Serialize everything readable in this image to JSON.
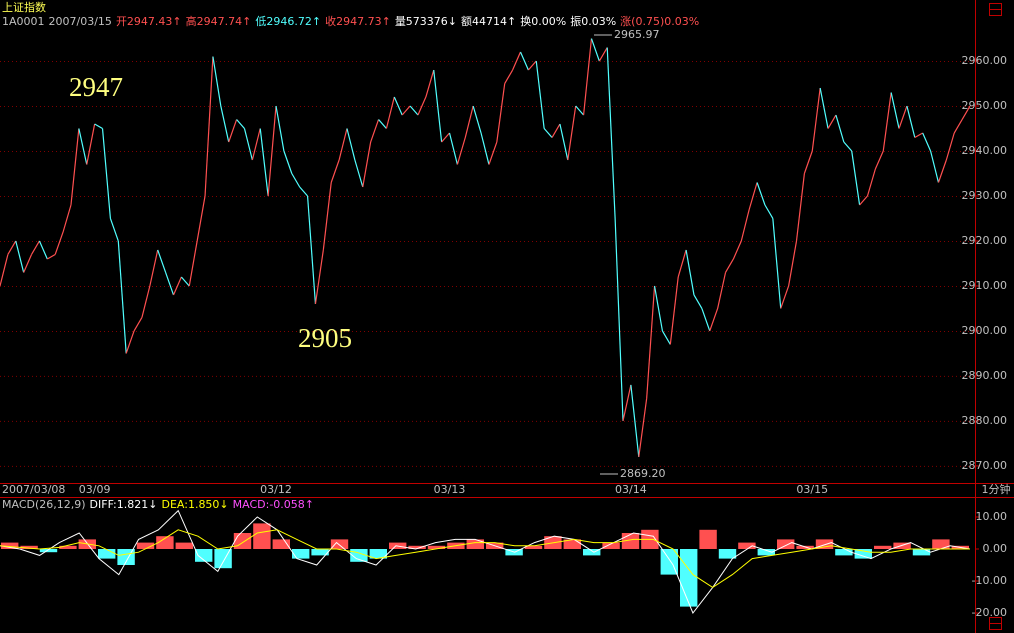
{
  "chart_data": [
    {
      "type": "line",
      "title": "上证指数",
      "title_color": "#ffff54",
      "info": [
        {
          "text": "1A0001",
          "color": "#c0c0c0"
        },
        {
          "text": "2007/03/15",
          "color": "#c0c0c0"
        },
        {
          "text": "开2947.43↑",
          "color": "#ff5050"
        },
        {
          "text": "高2947.74↑",
          "color": "#ff5050"
        },
        {
          "text": "低2946.72↑",
          "color": "#50ffff"
        },
        {
          "text": "收2947.73↑",
          "color": "#ff5050"
        },
        {
          "text": "量573376↓",
          "color": "#ffffff"
        },
        {
          "text": "额44714↑",
          "color": "#ffffff"
        },
        {
          "text": "换0.00%",
          "color": "#ffffff"
        },
        {
          "text": "振0.03%",
          "color": "#ffffff"
        },
        {
          "text": "涨(0.75)0.03%",
          "color": "#ff5050"
        }
      ],
      "categories": [
        "2007/03/08",
        null,
        null,
        null,
        null,
        null,
        null,
        null,
        null,
        null,
        null,
        null,
        "03/09",
        null,
        null,
        null,
        null,
        null,
        null,
        null,
        null,
        null,
        null,
        null,
        null,
        null,
        null,
        null,
        null,
        null,
        null,
        null,
        null,
        null,
        null,
        "03/12",
        null,
        null,
        null,
        null,
        null,
        null,
        null,
        null,
        null,
        null,
        null,
        null,
        null,
        null,
        null,
        null,
        null,
        null,
        null,
        null,
        null,
        "03/13",
        null,
        null,
        null,
        null,
        null,
        null,
        null,
        null,
        null,
        null,
        null,
        null,
        null,
        null,
        null,
        null,
        null,
        null,
        null,
        null,
        null,
        null,
        "03/14",
        null,
        null,
        null,
        null,
        null,
        null,
        null,
        null,
        null,
        null,
        null,
        null,
        null,
        null,
        null,
        null,
        null,
        null,
        null,
        null,
        null,
        null,
        "03/15",
        null,
        null,
        null,
        null,
        null,
        null,
        null,
        null,
        null,
        null,
        null,
        null,
        null,
        null,
        null,
        null,
        null,
        null,
        null,
        null
      ],
      "values": [
        2910,
        2917,
        2920,
        2913,
        2917,
        2920,
        2916,
        2917,
        2922,
        2928,
        2945,
        2937,
        2946,
        2945,
        2925,
        2920,
        2895,
        2900,
        2903,
        2910,
        2918,
        2913,
        2908,
        2912,
        2910,
        2920,
        2930,
        2961,
        2950,
        2942,
        2947,
        2945,
        2938,
        2945,
        2930,
        2950,
        2940,
        2935,
        2932,
        2930,
        2906,
        2918,
        2933,
        2938,
        2945,
        2938,
        2932,
        2942,
        2947,
        2945,
        2952,
        2948,
        2950,
        2948,
        2952,
        2958,
        2942,
        2944,
        2937,
        2943,
        2950,
        2944,
        2937,
        2942,
        2955,
        2958,
        2962,
        2958,
        2960,
        2945,
        2943,
        2946,
        2938,
        2950,
        2948,
        2965,
        2960,
        2963,
        2925,
        2880,
        2888,
        2872,
        2885,
        2910,
        2900,
        2897,
        2912,
        2918,
        2908,
        2905,
        2900,
        2905,
        2913,
        2916,
        2920,
        2927,
        2933,
        2928,
        2925,
        2905,
        2910,
        2920,
        2935,
        2940,
        2954,
        2945,
        2948,
        2942,
        2940,
        2928,
        2930,
        2936,
        2940,
        2953,
        2945,
        2950,
        2943,
        2944,
        2940,
        2933,
        2938,
        2944,
        2947,
        2950
      ],
      "up_color": "#ff5050",
      "down_color": "#50ffff",
      "ylim": [
        2866.2,
        2966.9
      ],
      "yticks": [
        {
          "value": 2870,
          "label": "2870.00"
        },
        {
          "value": 2880,
          "label": "2880.00"
        },
        {
          "value": 2890,
          "label": "2890.00"
        },
        {
          "value": 2900,
          "label": "2900.00"
        },
        {
          "value": 2910,
          "label": "2910.00"
        },
        {
          "value": 2920,
          "label": "2920.00"
        },
        {
          "value": 2930,
          "label": "2930.00"
        },
        {
          "value": 2940,
          "label": "2940.00"
        },
        {
          "value": 2950,
          "label": "2950.00"
        },
        {
          "value": 2960,
          "label": "2960.00"
        }
      ],
      "grid": true,
      "annotations": [
        {
          "text": "2947"
        },
        {
          "text": "2905"
        },
        {
          "text": "2965.97"
        },
        {
          "text": "2869.20"
        }
      ],
      "x_unit": "1分钟"
    },
    {
      "type": "macd",
      "title": "MACD(26,12,9)",
      "legend": [
        {
          "text": "DIFF:1.821↓",
          "color": "#ffffff"
        },
        {
          "text": "DEA:1.850↓",
          "color": "#ffff00"
        },
        {
          "text": "MACD:-0.058↑",
          "color": "#ff50ff"
        }
      ],
      "series": [
        {
          "color": "#ff5050",
          "down_color": "#50ffff",
          "values": [
            2,
            1,
            -1,
            1,
            3,
            -3,
            -5,
            2,
            4,
            2,
            -4,
            -6,
            5,
            8,
            3,
            -3,
            -2,
            3,
            -4,
            -3,
            2,
            1,
            1,
            2,
            3,
            2,
            -2,
            1,
            4,
            3,
            -2,
            2,
            5,
            6,
            -8,
            -18,
            6,
            -3,
            2,
            -2,
            3,
            1,
            3,
            -2,
            -3,
            1,
            2,
            -2,
            3,
            1
          ]
        },
        {
          "color": "#ffffff",
          "values": [
            1,
            0,
            -2,
            2,
            5,
            -3,
            -8,
            3,
            6,
            12,
            -2,
            -7,
            4,
            10,
            6,
            -3,
            -5,
            2,
            -3,
            -5,
            1,
            0,
            2,
            3,
            3,
            1,
            -1,
            2,
            4,
            3,
            -1,
            2,
            5,
            4,
            -5,
            -20,
            -12,
            -3,
            1,
            -1,
            2,
            0,
            2,
            -1,
            -3,
            0,
            2,
            -1,
            1,
            0
          ]
        },
        {
          "color": "#ffff00",
          "values": [
            1,
            0.5,
            0,
            0.5,
            2,
            1,
            -2,
            -1,
            2,
            6,
            4,
            0,
            1,
            5,
            6,
            3,
            0,
            0,
            -1,
            -3,
            -2,
            -1,
            0,
            1,
            2,
            2,
            1,
            1,
            2,
            3,
            2,
            2,
            3,
            3,
            0,
            -8,
            -12,
            -8,
            -3,
            -2,
            -1,
            0,
            1,
            0,
            -1,
            -1,
            0,
            0,
            0,
            0
          ]
        }
      ],
      "ylim": [
        -26.25,
        16.25
      ],
      "yticks": [
        {
          "value": -20,
          "label": "-20.00"
        },
        {
          "value": -10,
          "label": "-10.00"
        },
        {
          "value": 0,
          "label": "0.00"
        },
        {
          "value": 10,
          "label": "10.00"
        }
      ]
    }
  ]
}
